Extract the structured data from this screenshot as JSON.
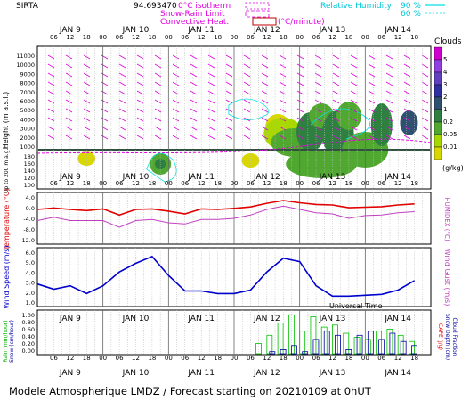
{
  "header": {
    "station": "SIRTA",
    "coords": "94.693470",
    "legend_magenta": [
      "0°C isotherm",
      "Snow-Rain Limit",
      "Convective Heat."
    ],
    "legend_magenta_unit": "(°C/minute)",
    "legend_cyan": "Relative Humidity",
    "legend_cyan_values": [
      "90 %",
      "60 %"
    ]
  },
  "footer": {
    "text": "Modele Atmospherique LMDZ / Forecast starting on 20210109 at 0hUT"
  },
  "colors": {
    "cloud_scale": [
      "#d8d800",
      "#a8d800",
      "#50a830",
      "#2f8040",
      "#305070",
      "#3030a0",
      "#6040c0",
      "#9040e0",
      "#d000d0"
    ],
    "magenta": "#e000e0",
    "cyan": "#00e0e0",
    "temperature": "#e00000",
    "humidex": "#c040c0",
    "wind": "#0000cc",
    "rain": "#00c000",
    "snow": "#0000a0"
  },
  "chart_data": [
    {
      "type": "heatmap",
      "name": "clouds",
      "ylabel": "Height (m a.s.l.)",
      "ylabel2": "Up to 200 m a.g.l.",
      "y_ticks": [
        "11000",
        "10000",
        "9000",
        "8000",
        "7000",
        "6000",
        "5000",
        "4000",
        "3000",
        "2000",
        "1000",
        "180",
        "160",
        "140",
        "120",
        "100"
      ],
      "day_labels": [
        "JAN 9",
        "JAN 10",
        "JAN 11",
        "JAN 12",
        "JAN 13",
        "JAN 14"
      ],
      "hour_labels": [
        "06",
        "12",
        "18",
        "00",
        "06",
        "12",
        "18",
        "00",
        "06",
        "12",
        "18",
        "00",
        "06",
        "12",
        "18",
        "00",
        "06",
        "12",
        "18",
        "00",
        "06",
        "12",
        "18"
      ],
      "colorbar": {
        "title": "Clouds",
        "ticks": [
          "5",
          "4",
          "3",
          "2",
          "1",
          "0.2",
          "0.05",
          "0.01"
        ],
        "unit": "(g/kg)"
      }
    },
    {
      "type": "line",
      "name": "temperature",
      "ylabel": "Temperature (°C)",
      "ylabel2": "HUMIDEX (°C)",
      "y_ticks": [
        "4.0",
        "0.0",
        "-4.0",
        "-8.0",
        "-12.0"
      ],
      "ylim": [
        -12,
        4
      ],
      "x_hours": [
        0,
        6,
        12,
        18,
        24,
        30,
        36,
        42,
        48,
        54,
        60,
        66,
        72,
        78,
        84,
        90,
        96,
        102,
        108,
        114,
        120,
        126,
        132,
        138
      ],
      "series": [
        {
          "name": "Temperature",
          "values": [
            -0.8,
            -0.3,
            -0.8,
            -1.2,
            -0.6,
            -2.8,
            -0.8,
            -0.6,
            -1.4,
            -2.4,
            -0.6,
            -0.8,
            -0.4,
            0.1,
            1.4,
            2.4,
            1.6,
            1.0,
            0.8,
            -0.2,
            0.0,
            0.2,
            0.8,
            1.2
          ]
        },
        {
          "name": "HUMIDEX",
          "values": [
            -4.8,
            -3.6,
            -4.8,
            -4.8,
            -4.8,
            -7.2,
            -4.8,
            -4.4,
            -5.6,
            -6.0,
            -4.4,
            -4.4,
            -4.0,
            -2.8,
            -0.8,
            0.4,
            -0.8,
            -2.0,
            -2.4,
            -4.0,
            -3.0,
            -2.8,
            -2.0,
            -1.6
          ]
        }
      ]
    },
    {
      "type": "line",
      "name": "wind",
      "ylabel": "Wind Speed (m/s)",
      "ylabel2": "Wind Gust (m/s)",
      "y_ticks": [
        "6.0",
        "5.0",
        "4.0",
        "3.0",
        "2.0",
        "1.0"
      ],
      "ylim": [
        0,
        6
      ],
      "x_hours": [
        0,
        6,
        12,
        18,
        24,
        30,
        36,
        42,
        48,
        54,
        60,
        66,
        72,
        78,
        84,
        90,
        96,
        102,
        108,
        114,
        120,
        126,
        132,
        138
      ],
      "series": [
        {
          "name": "Wind Speed",
          "values": [
            2.2,
            1.6,
            2.0,
            1.1,
            2.0,
            3.6,
            4.6,
            5.4,
            3.2,
            1.4,
            1.4,
            1.1,
            1.1,
            1.5,
            3.6,
            5.2,
            4.8,
            2.0,
            0.8,
            0.8,
            0.9,
            1.0,
            1.5,
            2.6
          ]
        }
      ]
    },
    {
      "type": "bar",
      "name": "precipitation",
      "ylabel": "Rain (mm/hour)",
      "ylabel_snow": "Snow (cm/hour)",
      "ylabel2": "CAPE (J/g)",
      "ylabel3": "Snow Depth (cm)",
      "ylabel4": "Cloud Fraction",
      "y_ticks": [
        "1.00",
        "0.80",
        "0.60",
        "0.40",
        "0.20",
        "0.00"
      ],
      "ylim": [
        0,
        1
      ],
      "x_hours": [
        80,
        84,
        88,
        92,
        96,
        100,
        104,
        108,
        112,
        116,
        120,
        124,
        128,
        132,
        136
      ],
      "series": [
        {
          "name": "Rain",
          "values": [
            0.25,
            0.45,
            0.75,
            0.95,
            0.55,
            0.9,
            0.65,
            0.7,
            0.5,
            0.4,
            0.35,
            0.55,
            0.6,
            0.45,
            0.3
          ]
        },
        {
          "name": "Snow",
          "values": [
            0.0,
            0.05,
            0.1,
            0.2,
            0.05,
            0.35,
            0.55,
            0.45,
            0.1,
            0.45,
            0.55,
            0.35,
            0.5,
            0.3,
            0.2
          ]
        }
      ],
      "xlabel": "Universal Time"
    }
  ]
}
